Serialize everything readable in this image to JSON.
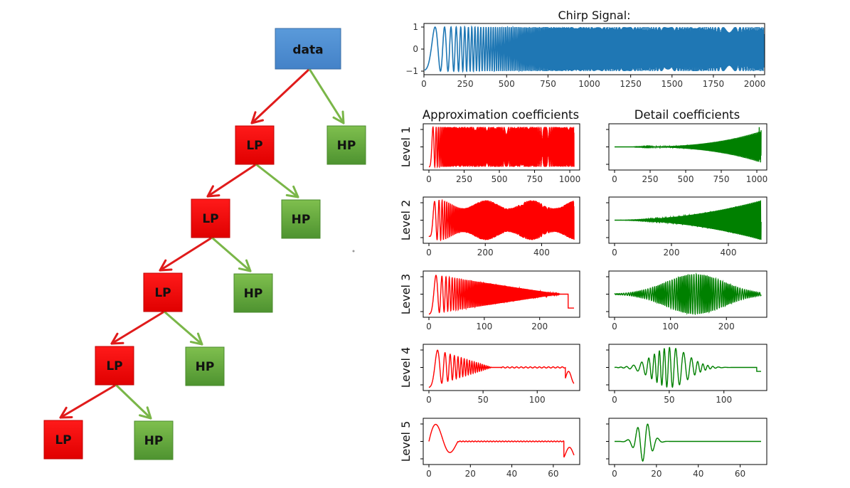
{
  "tree": {
    "root_label": "data",
    "lp_label": "LP",
    "hp_label": "HP",
    "colors": {
      "root_fill": "#4f8ed2",
      "lp_fill": "#ee0000",
      "hp_fill": "#6aaa3c",
      "lp_arrow": "#e01b1b",
      "hp_arrow": "#7ab648"
    }
  },
  "chirp_panel": {
    "title": "Chirp Signal:",
    "color": "#1f77b4",
    "x_ticks": [
      "0",
      "250",
      "500",
      "750",
      "1000",
      "1250",
      "1500",
      "1750",
      "2000"
    ],
    "y_ticks": [
      "1",
      "0",
      "−1"
    ]
  },
  "columns": {
    "approx_title": "Approximation coefficients",
    "detail_title": "Detail coefficients",
    "approx_color": "#ff0000",
    "detail_color": "#008000"
  },
  "levels": [
    {
      "label": "Level 1",
      "x_max": 1030,
      "approx_ticks": [
        "0",
        "250",
        "500",
        "750",
        "1000"
      ],
      "detail_ticks": [
        "0",
        "250",
        "500",
        "750",
        "1000"
      ]
    },
    {
      "label": "Level 2",
      "x_max": 515,
      "approx_ticks": [
        "0",
        "200",
        "400"
      ],
      "detail_ticks": [
        "0",
        "200",
        "400"
      ]
    },
    {
      "label": "Level 3",
      "x_max": 262,
      "approx_ticks": [
        "0",
        "100",
        "200"
      ],
      "detail_ticks": [
        "0",
        "100",
        "200"
      ]
    },
    {
      "label": "Level 4",
      "x_max": 134,
      "approx_ticks": [
        "0",
        "50",
        "100"
      ],
      "detail_ticks": [
        "0",
        "50",
        "100"
      ]
    },
    {
      "label": "Level 5",
      "x_max": 70,
      "approx_ticks": [
        "0",
        "20",
        "40",
        "60"
      ],
      "detail_ticks": [
        "0",
        "20",
        "40",
        "60"
      ]
    }
  ]
}
